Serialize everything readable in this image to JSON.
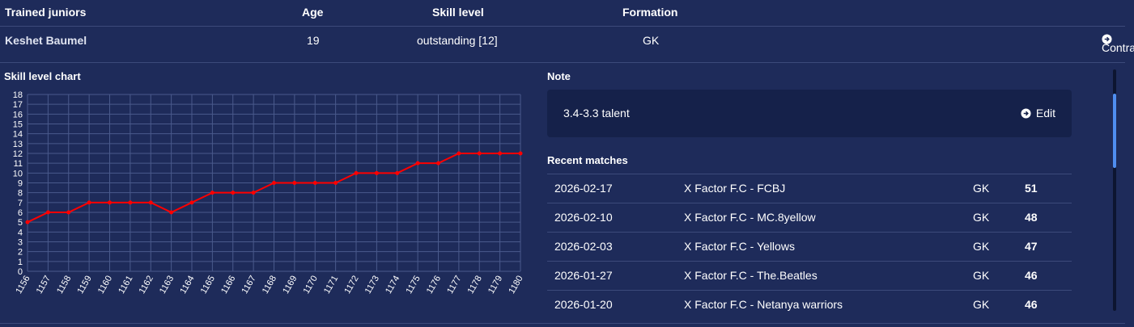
{
  "header": {
    "trained_juniors": "Trained juniors",
    "age": "Age",
    "skill_level": "Skill level",
    "formation": "Formation"
  },
  "player": {
    "name": "Keshet Baumel",
    "age": "19",
    "skill": "outstanding [12]",
    "formation": "GK",
    "contract_label": "Contract"
  },
  "chart_title": "Skill level chart",
  "note": {
    "title": "Note",
    "text": "3.4-3.3 talent",
    "edit_label": "Edit"
  },
  "recent_matches": {
    "title": "Recent matches",
    "rows": [
      {
        "date": "2026-02-17",
        "match": "X Factor F.C - FCBJ",
        "pos": "GK",
        "score": "51"
      },
      {
        "date": "2026-02-10",
        "match": "X Factor F.C - MC.8yellow",
        "pos": "GK",
        "score": "48"
      },
      {
        "date": "2026-02-03",
        "match": "X Factor F.C - Yellows",
        "pos": "GK",
        "score": "47"
      },
      {
        "date": "2026-01-27",
        "match": "X Factor F.C - The.Beatles",
        "pos": "GK",
        "score": "46"
      },
      {
        "date": "2026-01-20",
        "match": "X Factor F.C - Netanya warriors",
        "pos": "GK",
        "score": "46"
      }
    ]
  },
  "chart_data": {
    "type": "line",
    "title": "Skill level chart",
    "x": [
      "1156",
      "1157",
      "1158",
      "1159",
      "1160",
      "1161",
      "1162",
      "1163",
      "1164",
      "1165",
      "1166",
      "1167",
      "1168",
      "1169",
      "1170",
      "1171",
      "1172",
      "1173",
      "1174",
      "1175",
      "1176",
      "1177",
      "1178",
      "1179",
      "1180"
    ],
    "series": [
      {
        "values": [
          5,
          6,
          6,
          7,
          7,
          7,
          7,
          6,
          7,
          8,
          8,
          8,
          9,
          9,
          9,
          9,
          10,
          10,
          10,
          11,
          11,
          12,
          12,
          12,
          12
        ],
        "color": "#ff0000"
      }
    ],
    "ylim": [
      0,
      18
    ],
    "yticks": [
      0,
      1,
      2,
      3,
      4,
      5,
      6,
      7,
      8,
      9,
      10,
      11,
      12,
      13,
      14,
      15,
      16,
      17,
      18
    ],
    "grid": true,
    "grid_color": "#4a5a8c"
  },
  "colors": {
    "background": "#1e2b5a",
    "note_box": "#15214a",
    "scroll_thumb": "#4f8ef0"
  }
}
